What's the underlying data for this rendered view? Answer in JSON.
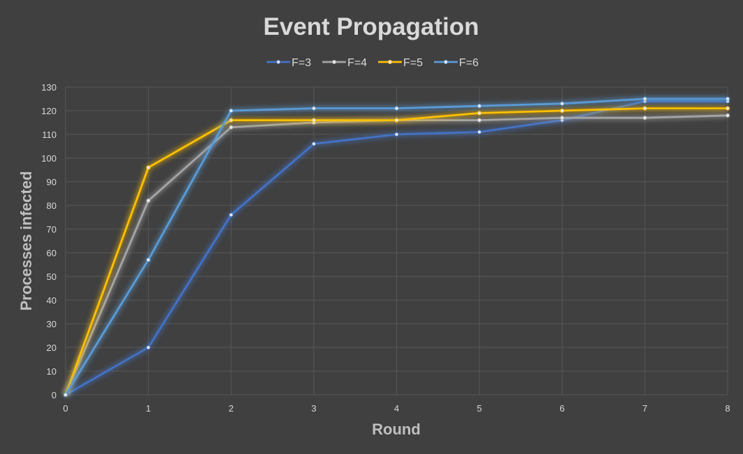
{
  "chart_data": {
    "type": "line",
    "title": "Event Propagation",
    "xlabel": "Round",
    "ylabel": "Processes infected",
    "x": [
      0,
      1,
      2,
      3,
      4,
      5,
      6,
      7,
      8
    ],
    "xlim": [
      0,
      8
    ],
    "ylim": [
      0,
      130
    ],
    "y_ticks": [
      0,
      10,
      20,
      30,
      40,
      50,
      60,
      70,
      80,
      90,
      100,
      110,
      120,
      130
    ],
    "grid": true,
    "legend_position": "top",
    "series": [
      {
        "name": "F=3",
        "color": "#4472c4",
        "values": [
          0,
          20,
          76,
          106,
          110,
          111,
          116,
          124,
          124
        ]
      },
      {
        "name": "F=4",
        "color": "#a5a5a5",
        "values": [
          0,
          82,
          113,
          115,
          116,
          116,
          117,
          117,
          118
        ]
      },
      {
        "name": "F=5",
        "color": "#ffc000",
        "values": [
          0,
          96,
          116,
          116,
          116,
          119,
          120,
          121,
          121
        ]
      },
      {
        "name": "F=6",
        "color": "#5b9bd5",
        "values": [
          0,
          57,
          120,
          121,
          121,
          122,
          123,
          125,
          125
        ]
      }
    ]
  }
}
